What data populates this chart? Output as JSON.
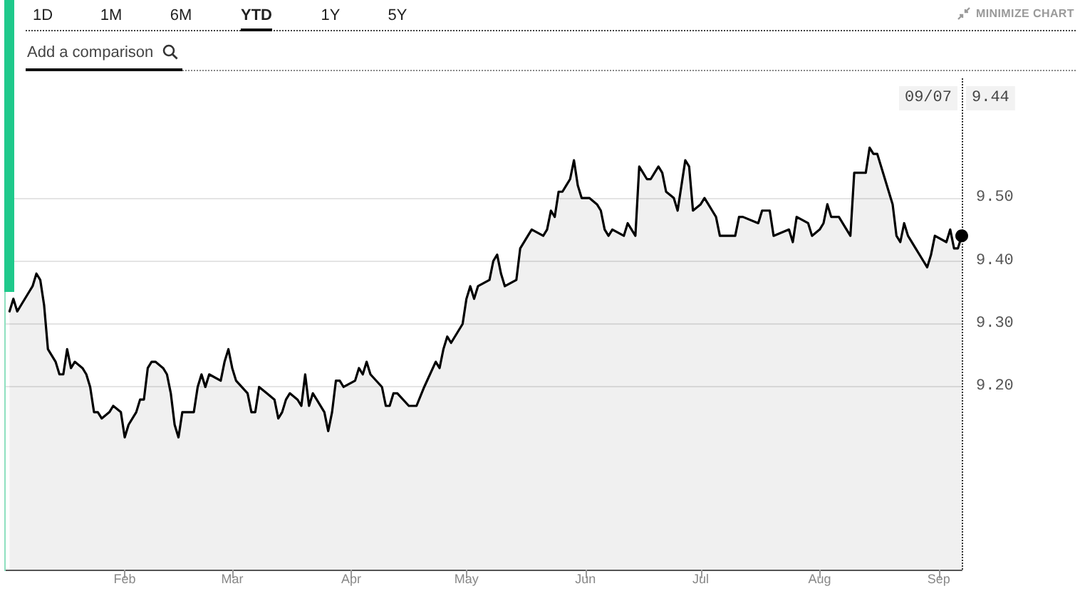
{
  "chart_data": {
    "type": "area",
    "annotations": [
      "1D",
      "1M",
      "6M",
      "YTD",
      "1Y",
      "5Y",
      "MINIMIZE CHART",
      "Add a comparison",
      "09/07",
      "9.44"
    ],
    "x": [
      "--01-02",
      "--01-03",
      "--01-04",
      "--01-05",
      "--01-07",
      "--01-08",
      "--01-09",
      "--01-10",
      "--01-11",
      "--01-12",
      "--01-14",
      "--01-15",
      "--01-16",
      "--01-17",
      "--01-18",
      "--01-19",
      "--01-21",
      "--01-22",
      "--01-23",
      "--01-24",
      "--01-25",
      "--01-26",
      "--01-28",
      "--01-29",
      "--01-31",
      "--02-01",
      "--02-02",
      "--02-04",
      "--02-05",
      "--02-06",
      "--02-07",
      "--02-08",
      "--02-09",
      "--02-11",
      "--02-12",
      "--02-13",
      "--02-14",
      "--02-15",
      "--02-16",
      "--02-19",
      "--02-20",
      "--02-21",
      "--02-22",
      "--02-23",
      "--02-26",
      "--02-27",
      "--02-28",
      "--03-01",
      "--03-02",
      "--03-05",
      "--03-06",
      "--03-07",
      "--03-08",
      "--03-10",
      "--03-12",
      "--03-13",
      "--03-14",
      "--03-15",
      "--03-16",
      "--03-18",
      "--03-19",
      "--03-20",
      "--03-21",
      "--03-22",
      "--03-23",
      "--03-25",
      "--03-26",
      "--03-27",
      "--03-28",
      "--03-29",
      "--03-30",
      "--04-02",
      "--04-03",
      "--04-04",
      "--04-05",
      "--04-06",
      "--04-09",
      "--04-10",
      "--04-11",
      "--04-12",
      "--04-13",
      "--04-16",
      "--04-18",
      "--04-20",
      "--04-23",
      "--04-24",
      "--04-25",
      "--04-26",
      "--04-27",
      "--04-30",
      "--05-01",
      "--05-02",
      "--05-03",
      "--05-04",
      "--05-07",
      "--05-08",
      "--05-09",
      "--05-10",
      "--05-11",
      "--05-14",
      "--05-15",
      "--05-17",
      "--05-18",
      "--05-21",
      "--05-22",
      "--05-23",
      "--05-24",
      "--05-25",
      "--05-26",
      "--05-27",
      "--05-28",
      "--05-29",
      "--05-30",
      "--05-31",
      "--06-01",
      "--06-02",
      "--06-04",
      "--06-05",
      "--06-06",
      "--06-07",
      "--06-08",
      "--06-11",
      "--06-12",
      "--06-13",
      "--06-14",
      "--06-15",
      "--06-16",
      "--06-17",
      "--06-18",
      "--06-19",
      "--06-20",
      "--06-21",
      "--06-22",
      "--06-24",
      "--06-25",
      "--06-26",
      "--06-27",
      "--06-28",
      "--06-29",
      "--07-01",
      "--07-02",
      "--07-03",
      "--07-04",
      "--07-05",
      "--07-06",
      "--07-09",
      "--07-10",
      "--07-11",
      "--07-12",
      "--07-16",
      "--07-17",
      "--07-18",
      "--07-19",
      "--07-20",
      "--07-24",
      "--07-25",
      "--07-26",
      "--07-29",
      "--07-30",
      "--08-01",
      "--08-02",
      "--08-03",
      "--08-04",
      "--08-06",
      "--08-08",
      "--08-09",
      "--08-10",
      "--08-13",
      "--08-14",
      "--08-15",
      "--08-16",
      "--08-18",
      "--08-20",
      "--08-21",
      "--08-22",
      "--08-23",
      "--08-24",
      "--08-26",
      "--08-28",
      "--08-29",
      "--08-30",
      "--08-31",
      "--09-03",
      "--09-04",
      "--09-05",
      "--09-06",
      "--09-07"
    ],
    "series": [
      {
        "color": "#000000",
        "values": [
          9.32,
          9.34,
          9.32,
          9.33,
          9.35,
          9.36,
          9.38,
          9.37,
          9.33,
          9.26,
          9.24,
          9.22,
          9.22,
          9.26,
          9.23,
          9.24,
          9.23,
          9.22,
          9.2,
          9.16,
          9.16,
          9.15,
          9.16,
          9.17,
          9.16,
          9.12,
          9.14,
          9.16,
          9.18,
          9.18,
          9.23,
          9.24,
          9.24,
          9.23,
          9.22,
          9.19,
          9.14,
          9.12,
          9.16,
          9.16,
          9.2,
          9.22,
          9.2,
          9.22,
          9.21,
          9.24,
          9.26,
          9.23,
          9.21,
          9.19,
          9.16,
          9.16,
          9.2,
          9.19,
          9.18,
          9.15,
          9.16,
          9.18,
          9.19,
          9.18,
          9.17,
          9.22,
          9.17,
          9.19,
          9.18,
          9.16,
          9.13,
          9.16,
          9.21,
          9.21,
          9.2,
          9.21,
          9.23,
          9.22,
          9.24,
          9.22,
          9.2,
          9.17,
          9.17,
          9.19,
          9.19,
          9.17,
          9.17,
          9.2,
          9.24,
          9.23,
          9.26,
          9.28,
          9.27,
          9.3,
          9.34,
          9.36,
          9.34,
          9.36,
          9.37,
          9.4,
          9.41,
          9.38,
          9.36,
          9.37,
          9.42,
          9.44,
          9.45,
          9.44,
          9.45,
          9.48,
          9.47,
          9.51,
          9.51,
          9.52,
          9.53,
          9.56,
          9.52,
          9.5,
          9.5,
          9.5,
          9.49,
          9.48,
          9.45,
          9.44,
          9.45,
          9.44,
          9.46,
          9.45,
          9.44,
          9.55,
          9.54,
          9.53,
          9.53,
          9.54,
          9.55,
          9.54,
          9.51,
          9.5,
          9.48,
          9.52,
          9.56,
          9.55,
          9.48,
          9.49,
          9.5,
          9.49,
          9.48,
          9.47,
          9.44,
          9.44,
          9.44,
          9.47,
          9.47,
          9.46,
          9.48,
          9.48,
          9.48,
          9.44,
          9.45,
          9.43,
          9.47,
          9.46,
          9.44,
          9.45,
          9.46,
          9.49,
          9.47,
          9.47,
          9.45,
          9.44,
          9.54,
          9.54,
          9.58,
          9.57,
          9.57,
          9.53,
          9.49,
          9.44,
          9.43,
          9.46,
          9.44,
          9.42,
          9.4,
          9.39,
          9.41,
          9.44,
          9.43,
          9.45,
          9.42,
          9.42,
          9.44
        ]
      }
    ],
    "xlim": [
      "--01-01",
      "--09-07"
    ],
    "xticks": [
      {
        "value": "--02-01",
        "label": "Feb"
      },
      {
        "value": "--03-01",
        "label": "Mar"
      },
      {
        "value": "--04-01",
        "label": "Apr"
      },
      {
        "value": "--05-01",
        "label": "May"
      },
      {
        "value": "--06-01",
        "label": "Jun"
      },
      {
        "value": "--07-01",
        "label": "Jul"
      },
      {
        "value": "--08-01",
        "label": "Aug"
      },
      {
        "value": "--09-01",
        "label": "Sep"
      }
    ],
    "ylim": [
      8.91,
      9.69
    ],
    "yticks": [
      {
        "value": 9.2,
        "label": "9.20"
      },
      {
        "value": 9.3,
        "label": "9.30"
      },
      {
        "value": 9.4,
        "label": "9.40"
      },
      {
        "value": 9.5,
        "label": "9.50"
      }
    ],
    "grid": "y",
    "line_style": "solid",
    "ref_lines": [
      {
        "axis": "x",
        "value": "--09-07",
        "line_style": "dotted",
        "color": "#333333"
      }
    ]
  }
}
